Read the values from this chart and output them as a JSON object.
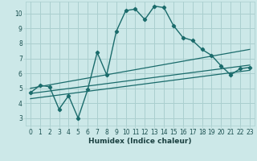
{
  "xlabel": "Humidex (Indice chaleur)",
  "bg_color": "#cce8e8",
  "grid_color": "#aacfcf",
  "line_color": "#1a6b6b",
  "xlim": [
    -0.5,
    23.5
  ],
  "ylim": [
    2.5,
    10.8
  ],
  "xticks": [
    0,
    1,
    2,
    3,
    4,
    5,
    6,
    7,
    8,
    9,
    10,
    11,
    12,
    13,
    14,
    15,
    16,
    17,
    18,
    19,
    20,
    21,
    22,
    23
  ],
  "yticks": [
    3,
    4,
    5,
    6,
    7,
    8,
    9,
    10
  ],
  "line1_x": [
    0,
    1,
    2,
    3,
    4,
    5,
    6,
    7,
    8,
    9,
    10,
    11,
    12,
    13,
    14,
    15,
    16,
    17,
    18,
    19,
    20,
    21,
    22,
    23
  ],
  "line1_y": [
    4.7,
    5.2,
    5.1,
    3.6,
    4.5,
    3.0,
    4.9,
    7.4,
    5.9,
    8.8,
    10.2,
    10.3,
    9.6,
    10.5,
    10.4,
    9.2,
    8.4,
    8.2,
    7.6,
    7.2,
    6.5,
    5.9,
    6.3,
    6.4
  ],
  "line2_x": [
    0,
    23
  ],
  "line2_y": [
    5.0,
    7.6
  ],
  "line3_x": [
    0,
    23
  ],
  "line3_y": [
    4.65,
    6.55
  ],
  "line4_x": [
    0,
    23
  ],
  "line4_y": [
    4.3,
    6.2
  ]
}
